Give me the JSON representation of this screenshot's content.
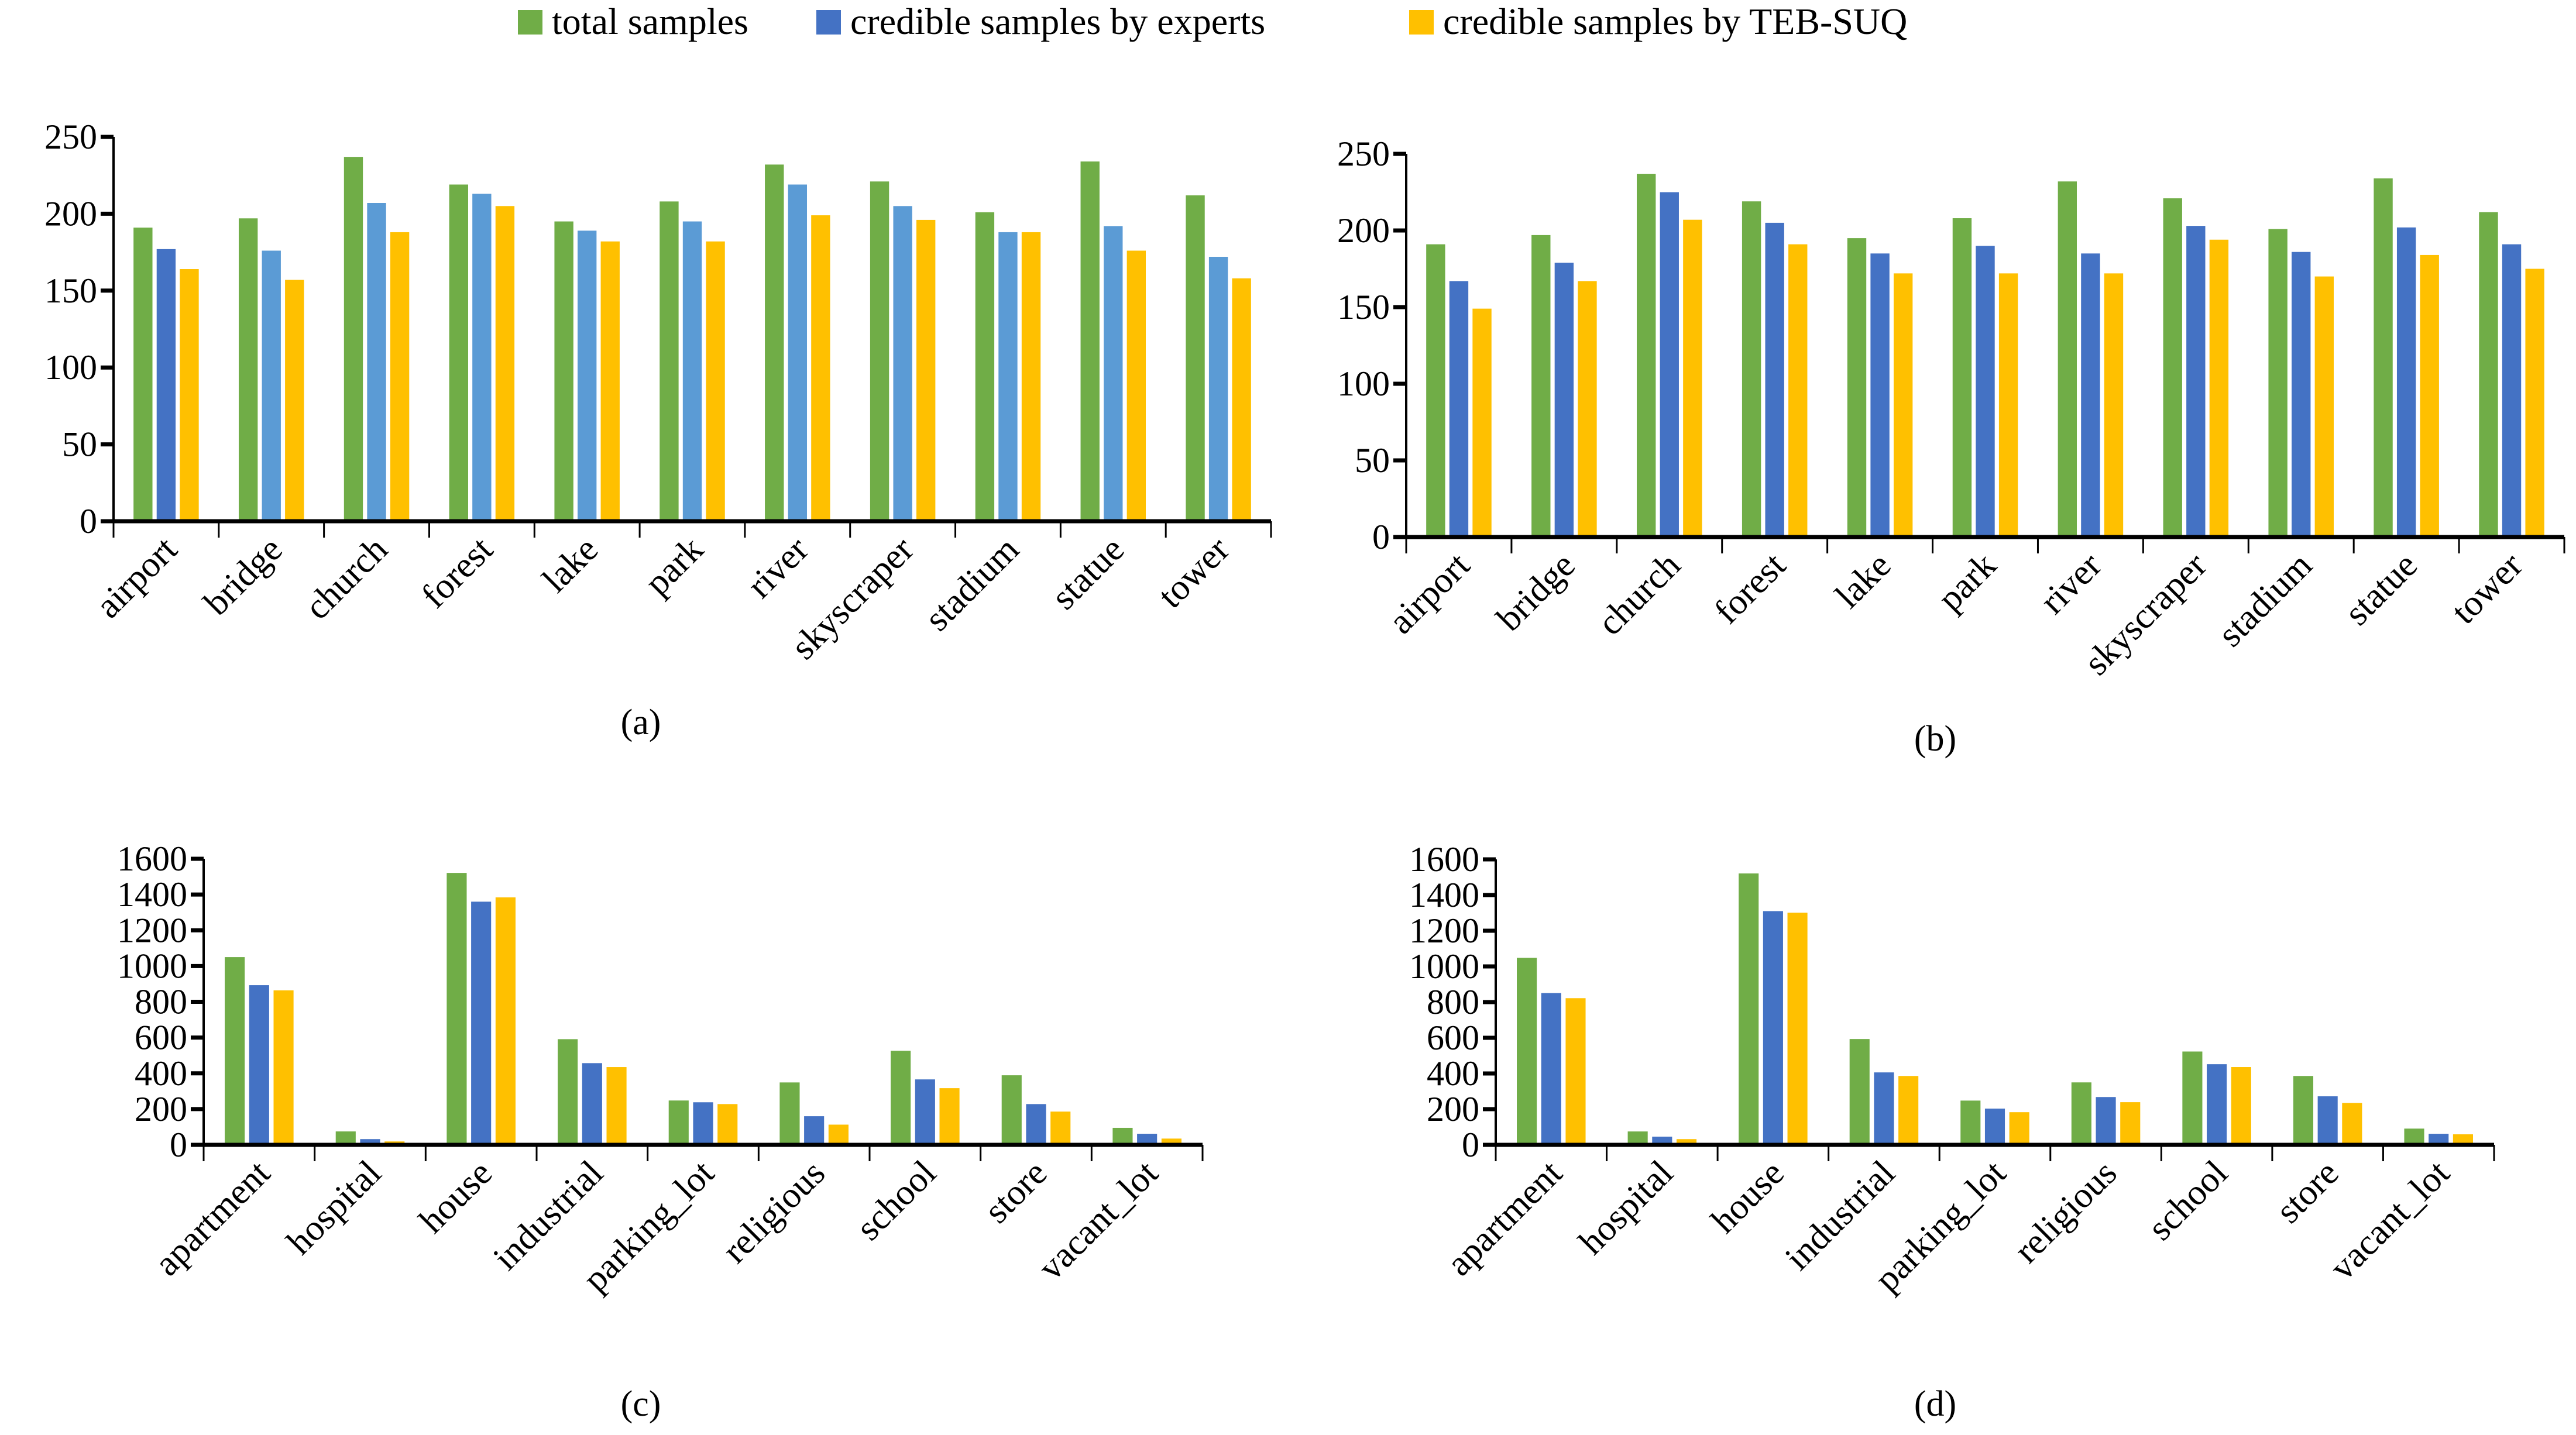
{
  "legend": [
    {
      "label": "total samples",
      "color": "#70AD47"
    },
    {
      "label": "credible samples by experts",
      "color": "#4472C4"
    },
    {
      "label": "credible samples by TEB-SUQ",
      "color": "#FFC000"
    }
  ],
  "chart_data": [
    {
      "type": "bar",
      "caption": "(a)",
      "title": "",
      "xlabel": "",
      "ylabel": "",
      "ylim": [
        0,
        250
      ],
      "yticks": [
        "0",
        "50",
        "100",
        "150",
        "200",
        "250"
      ],
      "grid": false,
      "categories": [
        "airport",
        "bridge",
        "church",
        "forest",
        "lake",
        "park",
        "river",
        "skyscraper",
        "stadium",
        "statue",
        "tower"
      ],
      "series": [
        {
          "name": "total samples",
          "color": "#70AD47",
          "values": [
            191,
            197,
            237,
            219,
            195,
            208,
            232,
            221,
            201,
            234,
            212
          ]
        },
        {
          "name": "credible samples by experts",
          "color": "#5B9BD5",
          "bar_colors": [
            "#4472C4",
            "#5B9BD5",
            "#5B9BD5",
            "#5B9BD5",
            "#5B9BD5",
            "#5B9BD5",
            "#5B9BD5",
            "#5B9BD5",
            "#5B9BD5",
            "#5B9BD5",
            "#5B9BD5"
          ],
          "values": [
            177,
            176,
            207,
            213,
            189,
            195,
            219,
            205,
            188,
            192,
            172
          ]
        },
        {
          "name": "credible samples by TEB-SUQ",
          "color": "#FFC000",
          "values": [
            164,
            157,
            188,
            205,
            182,
            182,
            199,
            196,
            188,
            176,
            158
          ]
        }
      ]
    },
    {
      "type": "bar",
      "caption": "(b)",
      "title": "",
      "xlabel": "",
      "ylabel": "",
      "ylim": [
        0,
        250
      ],
      "yticks": [
        "0",
        "50",
        "100",
        "150",
        "200",
        "250"
      ],
      "grid": false,
      "categories": [
        "airport",
        "bridge",
        "church",
        "forest",
        "lake",
        "park",
        "river",
        "skyscraper",
        "stadium",
        "statue",
        "tower"
      ],
      "series": [
        {
          "name": "total samples",
          "color": "#70AD47",
          "values": [
            191,
            197,
            237,
            219,
            195,
            208,
            232,
            221,
            201,
            234,
            212
          ]
        },
        {
          "name": "credible samples by experts",
          "color": "#4472C4",
          "values": [
            167,
            179,
            225,
            205,
            185,
            190,
            185,
            203,
            186,
            202,
            191
          ]
        },
        {
          "name": "credible samples by TEB-SUQ",
          "color": "#FFC000",
          "values": [
            149,
            167,
            207,
            191,
            172,
            172,
            172,
            194,
            170,
            184,
            175
          ]
        }
      ]
    },
    {
      "type": "bar",
      "caption": "(c)",
      "title": "",
      "xlabel": "",
      "ylabel": "",
      "ylim": [
        0,
        1600
      ],
      "yticks": [
        "0",
        "200",
        "400",
        "600",
        "800",
        "1000",
        "1200",
        "1400",
        "1600"
      ],
      "grid": false,
      "categories": [
        "apartment",
        "hospital",
        "house",
        "industrial",
        "parking_lot",
        "religious",
        "school",
        "store",
        "vacant_lot"
      ],
      "series": [
        {
          "name": "total samples",
          "color": "#70AD47",
          "values": [
            1050,
            75,
            1521,
            591,
            248,
            349,
            526,
            389,
            95
          ]
        },
        {
          "name": "credible samples by experts",
          "color": "#4472C4",
          "values": [
            893,
            32,
            1360,
            457,
            238,
            160,
            366,
            228,
            62
          ]
        },
        {
          "name": "credible samples by TEB-SUQ",
          "color": "#FFC000",
          "values": [
            864,
            19,
            1384,
            435,
            228,
            113,
            317,
            186,
            35
          ]
        }
      ]
    },
    {
      "type": "bar",
      "caption": "(d)",
      "title": "",
      "xlabel": "",
      "ylabel": "",
      "ylim": [
        0,
        1600
      ],
      "yticks": [
        "0",
        "200",
        "400",
        "600",
        "800",
        "1000",
        "1200",
        "1400",
        "1600"
      ],
      "grid": false,
      "categories": [
        "apartment",
        "hospital",
        "house",
        "industrial",
        "parking_lot",
        "religious",
        "school",
        "store",
        "vacant_lot"
      ],
      "series": [
        {
          "name": "total samples",
          "color": "#70AD47",
          "values": [
            1048,
            75,
            1521,
            593,
            248,
            350,
            523,
            386,
            91
          ]
        },
        {
          "name": "credible samples by experts",
          "color": "#4472C4",
          "values": [
            851,
            46,
            1310,
            406,
            203,
            268,
            452,
            272,
            62
          ]
        },
        {
          "name": "credible samples by TEB-SUQ",
          "color": "#FFC000",
          "values": [
            822,
            32,
            1301,
            386,
            183,
            239,
            436,
            235,
            59
          ]
        }
      ]
    }
  ]
}
